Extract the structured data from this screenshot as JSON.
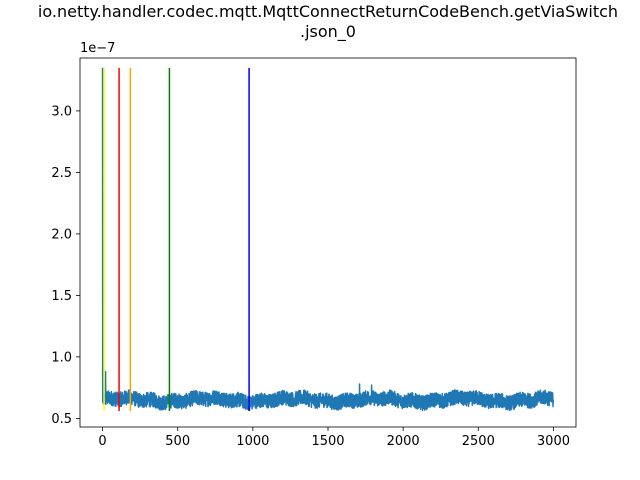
{
  "chart_data": {
    "type": "line",
    "title_line1": "io.netty.handler.codec.mqtt.MqttConnectReturnCodeBench.getViaSwitch",
    "title_line2": ".json_0",
    "xlabel": "",
    "ylabel": "",
    "y_offset_label": "1e−7",
    "xlim": [
      -150,
      3150
    ],
    "ylim": [
      0.43,
      3.43
    ],
    "x_ticks": [
      0,
      500,
      1000,
      1500,
      2000,
      2500,
      3000
    ],
    "x_tick_labels": [
      "0",
      "500",
      "1000",
      "1500",
      "2000",
      "2500",
      "3000"
    ],
    "y_ticks": [
      0.5,
      1.0,
      1.5,
      2.0,
      2.5,
      3.0
    ],
    "y_tick_labels": [
      "0.5",
      "1.0",
      "1.5",
      "2.0",
      "2.5",
      "3.0"
    ],
    "grid": false,
    "series": [
      {
        "color": "#1f77b4",
        "n_points": 3000,
        "baseline": 0.65,
        "approx_range": [
          0.55,
          0.78
        ],
        "spikes": [
          {
            "x": 0,
            "y": 3.35
          },
          {
            "x": 20,
            "y": 0.88
          },
          {
            "x": 1710,
            "y": 0.78
          },
          {
            "x": 1790,
            "y": 0.77
          }
        ]
      }
    ],
    "vertical_lines": [
      {
        "x": 10,
        "color": "#ffff00",
        "ymin": 0.56,
        "ymax": 3.35
      },
      {
        "x": 110,
        "color": "#ff0000",
        "ymin": 0.56,
        "ymax": 3.35
      },
      {
        "x": 185,
        "color": "#ffa500",
        "ymin": 0.56,
        "ymax": 3.35
      },
      {
        "x": 445,
        "color": "#008000",
        "ymin": 0.56,
        "ymax": 3.35
      },
      {
        "x": 975,
        "color": "#0000ff",
        "ymin": 0.56,
        "ymax": 3.35
      }
    ]
  }
}
